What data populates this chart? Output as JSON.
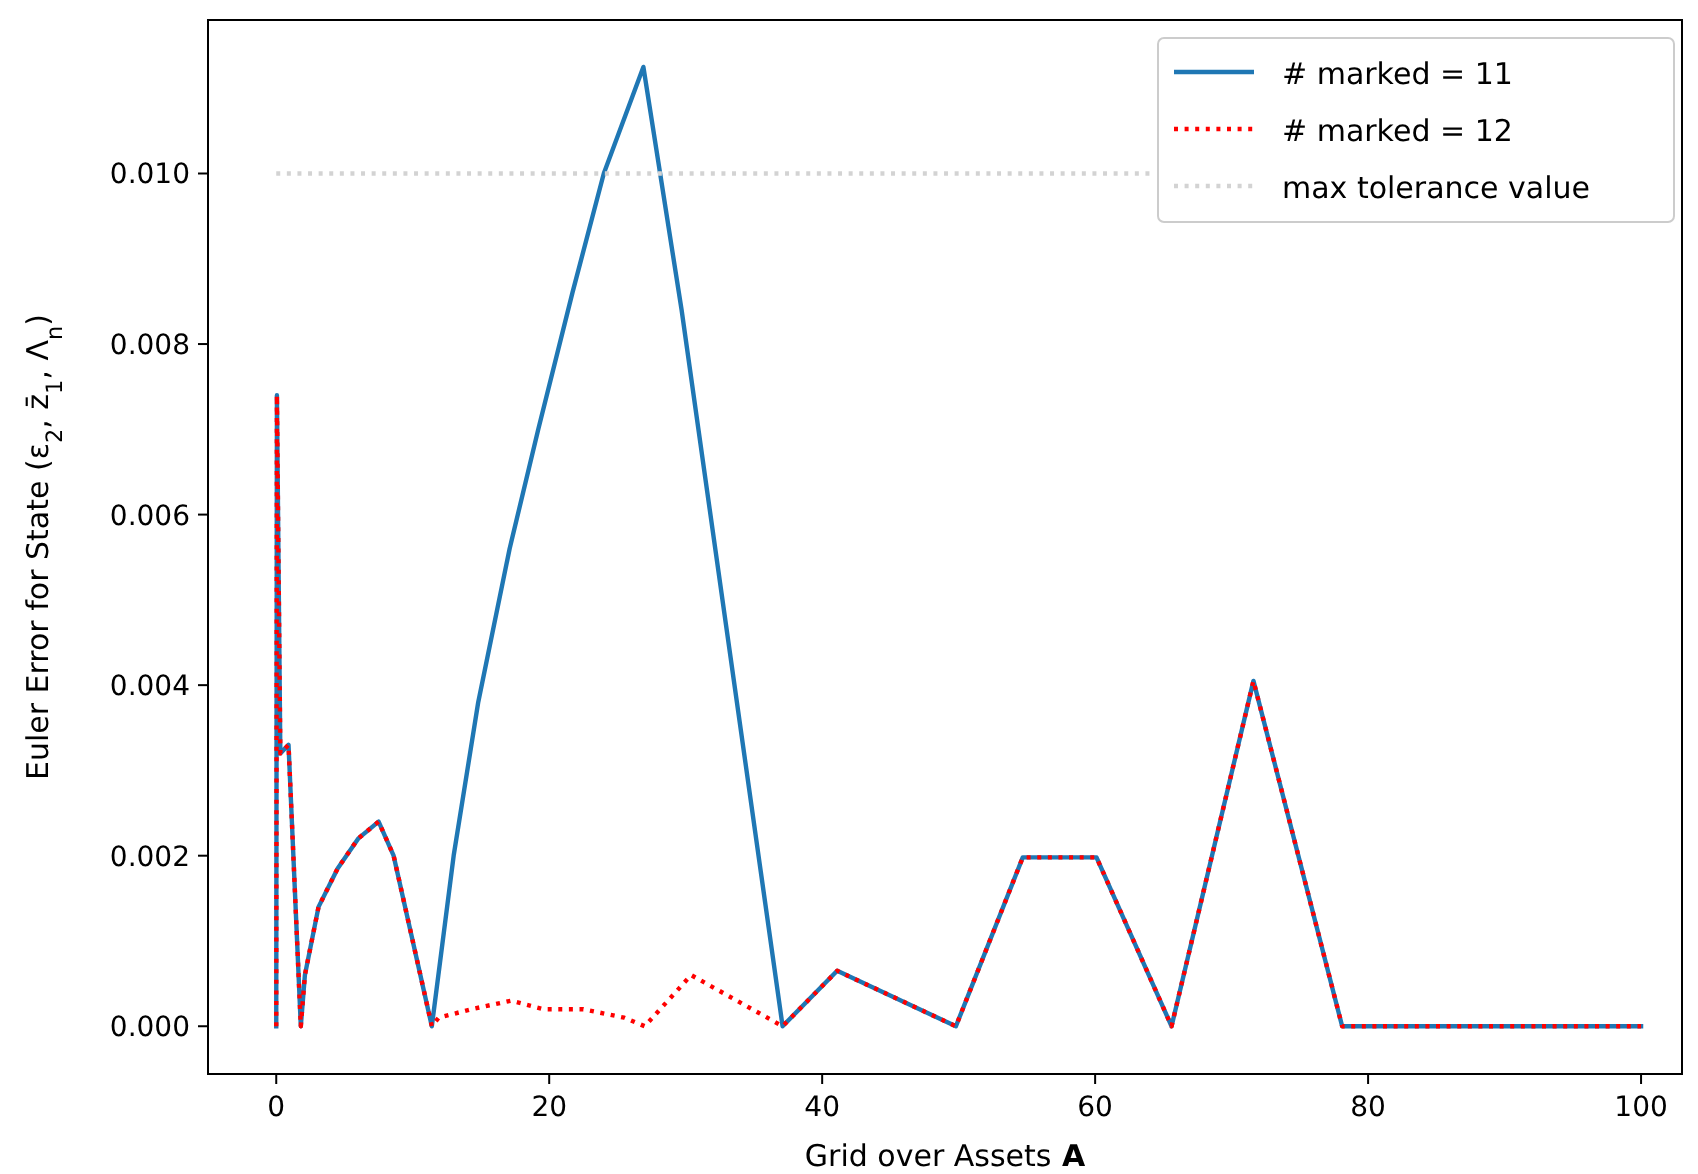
{
  "chart_data": {
    "type": "line",
    "xlabel": "Grid over Assets A",
    "ylabel": "Euler Error for State  (ε$_{2}$, z̄$_{1}$, Λ$_{n}$)",
    "xlim": [
      -5,
      103
    ],
    "ylim": [
      -0.00056,
      0.0118
    ],
    "xticks": [
      0,
      20,
      40,
      60,
      80,
      100
    ],
    "yticks": [
      {
        "value": 0,
        "label": "0.000"
      },
      {
        "value": 0.002,
        "label": "0.002"
      },
      {
        "value": 0.004,
        "label": "0.004"
      },
      {
        "value": 0.006,
        "label": "0.006"
      },
      {
        "value": 0.008,
        "label": "0.008"
      },
      {
        "value": 0.01,
        "label": "0.010"
      }
    ],
    "grid": false,
    "legend": "top right",
    "marker": "none",
    "series": [
      {
        "name": "# marked = 11",
        "color": "#1f77b4",
        "line_style": "solid",
        "x": [
          0,
          0.05,
          0.3,
          0.9,
          1.8,
          2.1,
          3.1,
          4.5,
          6.0,
          7.5,
          8.6,
          11.4,
          13.0,
          14.8,
          17.1,
          19.2,
          21.7,
          24.0,
          26.9,
          29.7,
          37.1,
          41.1,
          49.8,
          54.7,
          60.1,
          65.6,
          71.6,
          78.1,
          100
        ],
        "values": [
          0,
          0.0074,
          0.0032,
          0.0033,
          0,
          0.0006,
          0.0014,
          0.00185,
          0.0022,
          0.0024,
          0.002,
          0,
          0.002,
          0.0038,
          0.0056,
          0.007,
          0.0086,
          0.01,
          0.01125,
          0.0084,
          0,
          0.00065,
          0,
          0.00198,
          0.00198,
          0,
          0.00405,
          0,
          0
        ]
      },
      {
        "name": "# marked = 12",
        "color": "#ff0000",
        "line_style": "dotted",
        "x": [
          0,
          0.05,
          0.3,
          0.9,
          1.8,
          2.1,
          3.1,
          4.5,
          6.0,
          7.5,
          8.6,
          11.4,
          11.9,
          14.3,
          17.2,
          19.6,
          22.5,
          25.5,
          27.0,
          30.4,
          37.1,
          41.1,
          49.8,
          54.7,
          60.1,
          65.6,
          71.6,
          78.1,
          100
        ],
        "values": [
          0,
          0.0074,
          0.0032,
          0.0033,
          0,
          0.0006,
          0.0014,
          0.00185,
          0.0022,
          0.0024,
          0.002,
          0,
          0.0001,
          0.0002,
          0.0003,
          0.0002,
          0.0002,
          0.0001,
          0,
          0.0006,
          0,
          0.00065,
          0,
          0.00198,
          0.00198,
          0,
          0.00405,
          0,
          0
        ]
      },
      {
        "name": "max tolerance value",
        "color": "#d3d3d3",
        "line_style": "dotted",
        "x": [
          0,
          64
        ],
        "values": [
          0.01,
          0.01
        ]
      }
    ]
  }
}
